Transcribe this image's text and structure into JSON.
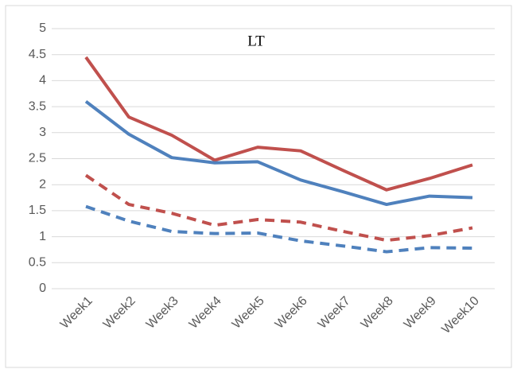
{
  "chart_data": {
    "type": "line",
    "title": "LT",
    "categories": [
      "Week1",
      "Week2",
      "Week3",
      "Week4",
      "Week5",
      "Week6",
      "Week7",
      "Week8",
      "Week9",
      "Week10"
    ],
    "series": [
      {
        "color": "#c0504d",
        "dash": "solid",
        "values": [
          4.45,
          3.3,
          2.95,
          2.47,
          2.72,
          2.65,
          2.27,
          1.9,
          2.12,
          2.38
        ]
      },
      {
        "color": "#4f81bd",
        "dash": "solid",
        "values": [
          3.6,
          2.97,
          2.52,
          2.42,
          2.44,
          2.09,
          1.86,
          1.62,
          1.78,
          1.75
        ]
      },
      {
        "color": "#c0504d",
        "dash": "dashed",
        "values": [
          2.18,
          1.62,
          1.45,
          1.22,
          1.33,
          1.28,
          1.1,
          0.93,
          1.02,
          1.17
        ]
      },
      {
        "color": "#4f81bd",
        "dash": "dashed",
        "values": [
          1.58,
          1.3,
          1.1,
          1.06,
          1.07,
          0.92,
          0.82,
          0.71,
          0.79,
          0.78
        ]
      }
    ],
    "ylim": [
      0,
      5
    ],
    "yticks": [
      0,
      0.5,
      1,
      1.5,
      2,
      2.5,
      3,
      3.5,
      4,
      4.5,
      5
    ],
    "grid": true
  }
}
